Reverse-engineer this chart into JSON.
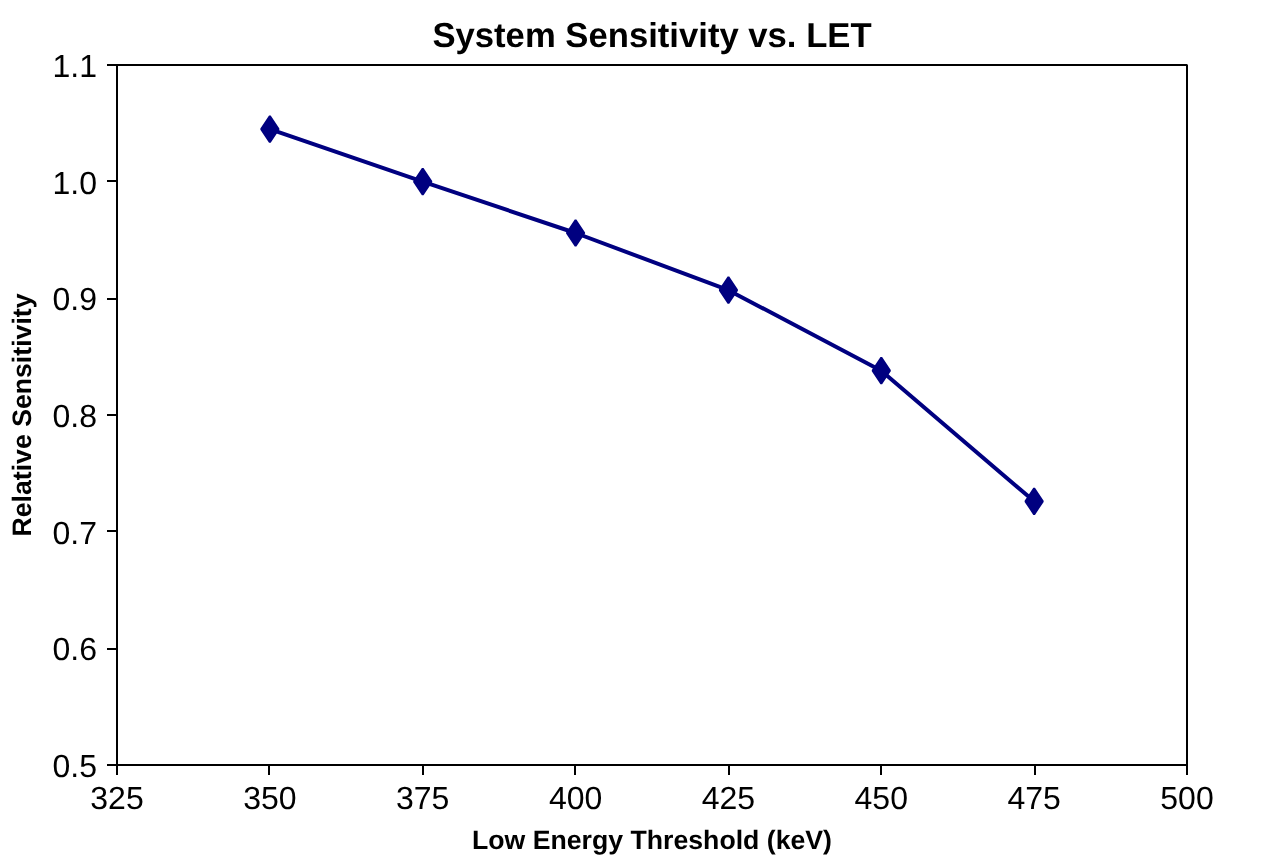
{
  "chart_data": {
    "type": "line",
    "title": "System Sensitivity vs. LET",
    "xlabel": "Low Energy Threshold (keV)",
    "ylabel": "Relative Sensitivity",
    "x": [
      350,
      375,
      400,
      425,
      450,
      475
    ],
    "series": [
      {
        "color": "#000080",
        "values": [
          1.045,
          1.0,
          0.956,
          0.907,
          0.838,
          0.726
        ]
      }
    ],
    "xlim": [
      325,
      500
    ],
    "xticks": [
      325,
      350,
      375,
      400,
      425,
      450,
      475,
      500
    ],
    "ylim": [
      0.5,
      1.1
    ],
    "yticks": [
      {
        "value": 0.5,
        "label": "0.5"
      },
      {
        "value": 0.6,
        "label": "0.6"
      },
      {
        "value": 0.7,
        "label": "0.7"
      },
      {
        "value": 0.8,
        "label": "0.8"
      },
      {
        "value": 0.9,
        "label": "0.9"
      },
      {
        "value": 1.0,
        "label": "1.0"
      },
      {
        "value": 1.1,
        "label": "1.1"
      }
    ],
    "marker": "diamond",
    "line_style": "solid",
    "grid": false
  }
}
